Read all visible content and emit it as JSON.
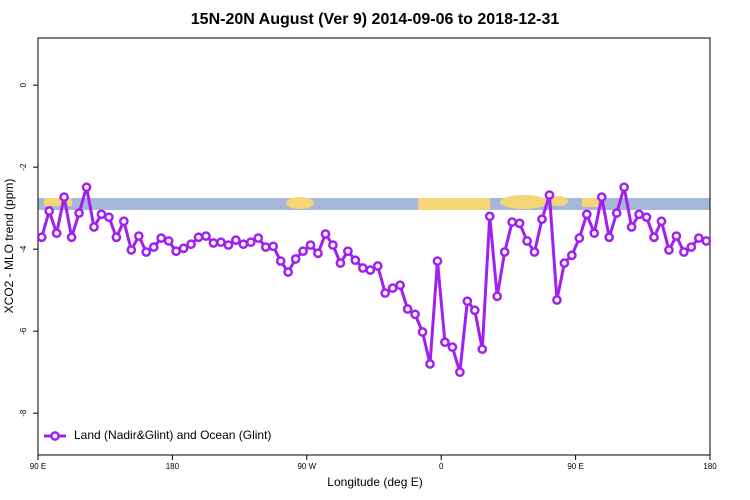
{
  "chart_data": {
    "type": "line",
    "title": "15N-20N August (Ver 9)   2014-09-06 to 2018-12-31",
    "x_label": "Longitude (deg E)",
    "y_label": "XCO2 - MLO trend (ppm)",
    "xlim": [
      90,
      540
    ],
    "ylim": [
      -9.02,
      1.15
    ],
    "xticks": [
      {
        "value": 90,
        "label": "90 E"
      },
      180,
      {
        "value": 270,
        "label": "90 W"
      },
      {
        "value": 360,
        "label": "0"
      },
      {
        "value": 450,
        "label": "90 E"
      },
      {
        "value": 540,
        "label": "180"
      }
    ],
    "yticks": [
      0,
      -2,
      -4,
      -6,
      -8
    ],
    "legend": "lower left",
    "x": [
      92.5,
      97.5,
      102.5,
      107.5,
      112.5,
      117.5,
      122.5,
      127.5,
      132.5,
      137.5,
      142.5,
      147.5,
      152.5,
      157.5,
      162.5,
      167.5,
      172.5,
      177.5,
      182.5,
      187.5,
      192.5,
      197.5,
      202.5,
      207.5,
      212.5,
      217.5,
      222.5,
      227.5,
      232.5,
      237.5,
      242.5,
      247.5,
      252.5,
      257.5,
      262.5,
      267.5,
      272.5,
      277.5,
      282.5,
      287.5,
      292.5,
      297.5,
      302.5,
      307.5,
      312.5,
      317.5,
      322.5,
      327.5,
      332.5,
      337.5,
      342.5,
      347.5,
      352.5,
      357.5,
      362.5,
      367.5,
      372.5,
      377.5,
      382.5,
      387.5,
      392.5,
      397.5,
      402.5,
      407.5,
      412.5,
      417.5,
      422.5,
      427.5,
      432.5,
      437.5,
      442.5,
      447.5,
      452.5,
      457.5,
      462.5,
      467.5,
      472.5,
      477.5,
      482.5,
      487.5,
      492.5,
      497.5,
      502.5,
      507.5,
      512.5,
      517.5,
      522.5,
      527.5,
      532.5,
      537.5
    ],
    "series": [
      {
        "name": "Land (Nadir&Glint) and Ocean (Glint)",
        "color": "#a020f0",
        "values": [
          -3.71,
          -3.07,
          -3.61,
          -2.73,
          -3.71,
          -3.12,
          -2.49,
          -3.46,
          -3.15,
          -3.22,
          -3.71,
          -3.32,
          -4.02,
          -3.68,
          -4.07,
          -3.95,
          -3.73,
          -3.8,
          -4.05,
          -3.98,
          -3.88,
          -3.71,
          -3.68,
          -3.85,
          -3.83,
          -3.9,
          -3.78,
          -3.88,
          -3.83,
          -3.73,
          -3.95,
          -3.93,
          -4.29,
          -4.56,
          -4.24,
          -4.05,
          -3.9,
          -4.1,
          -3.63,
          -3.9,
          -4.34,
          -4.05,
          -4.27,
          -4.46,
          -4.51,
          -4.41,
          -5.07,
          -4.95,
          -4.88,
          -5.46,
          -5.59,
          -6.02,
          -6.8,
          -4.29,
          -6.27,
          -6.39,
          -7.0,
          -5.27,
          -5.49,
          -6.44,
          -3.2,
          -5.15,
          -4.07,
          -3.34,
          -3.37,
          -3.8,
          -4.07,
          -3.27,
          -2.68,
          -5.24,
          -4.34,
          -4.15,
          -3.73,
          -3.15,
          -3.61,
          -2.73,
          -3.71,
          -3.12,
          -2.49,
          -3.46,
          -3.15,
          -3.22,
          -3.71,
          -3.32,
          -4.02,
          -3.68,
          -4.07,
          -3.95,
          -3.73,
          -3.8
        ]
      }
    ]
  }
}
